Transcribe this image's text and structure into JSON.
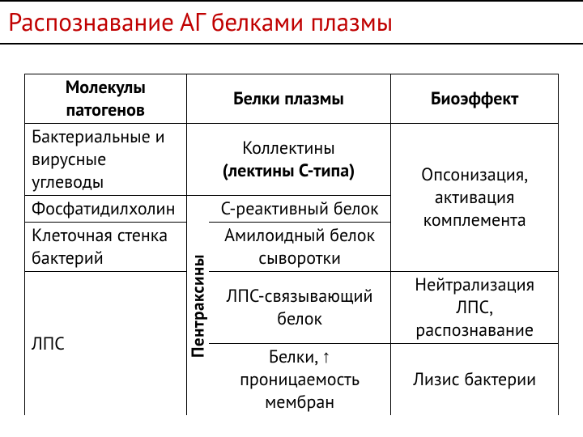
{
  "title": "Распознавание АГ белками плазмы",
  "headers": {
    "col1": "Молекулы патогенов",
    "col2": "Белки плазмы",
    "col3": "Биоэффект"
  },
  "vertical_label": "Пентраксины",
  "rows": {
    "r1c1": "Бактериальные и вирусные углеводы",
    "r1c2a": "Коллектины",
    "r1c2b": "(лектины С-типа)",
    "r2c1": "Фосфатидилхолин",
    "r2c2": "С-реактивный белок",
    "effect12": "Опсонизация, активация комплемента",
    "r3c1": "Клеточная стенка бактерий",
    "r3c2": "Амилоидный белок сыворотки",
    "r4c1": "ЛПС",
    "r4c2": "ЛПС-связывающий белок",
    "effect4": "Нейтрализация ЛПС, распознавание",
    "r5c2a": "Белки, ",
    "r5c2_arrow": "↑",
    "r5c2b": " проницаемость мембран",
    "effect5": "Лизис бактерии"
  },
  "colors": {
    "title": "#c00000",
    "border": "#000000",
    "text": "#000000",
    "background": "#ffffff"
  },
  "fontsize": {
    "title": 31,
    "body": 22,
    "vlabel": 21
  }
}
